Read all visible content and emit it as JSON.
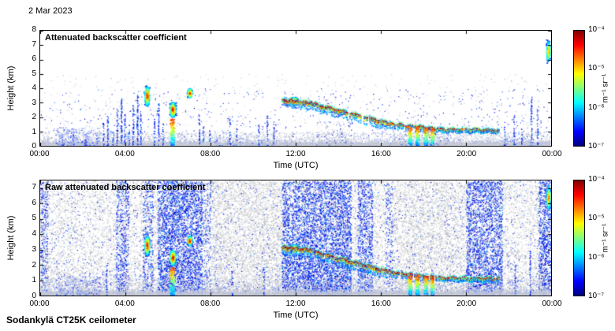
{
  "date_label": "2 Mar 2023",
  "footer_label": "Sodankylä CT25K ceilometer",
  "time_axis": {
    "label": "Time (UTC)",
    "tick_hours": [
      0,
      4,
      8,
      12,
      16,
      20,
      24
    ],
    "tick_labels": [
      "00:00",
      "04:00",
      "08:00",
      "12:00",
      "16:00",
      "20:00",
      "00:00"
    ]
  },
  "colorbar": {
    "unit": "m⁻¹ sr⁻¹",
    "tick_labels": [
      "10⁻⁴",
      "10⁻⁵",
      "10⁻⁶",
      "10⁻⁷"
    ],
    "min": "1e-7",
    "max": "1e-4",
    "colormap": "jet"
  },
  "chart_data": [
    {
      "type": "heatmap",
      "title": "Attenuated backscatter coefficient",
      "ylabel": "Height (km)",
      "xlabel": "Time (UTC)",
      "x_range_hours": [
        0,
        24
      ],
      "y_range_km": [
        0,
        8
      ],
      "y_ticks": [
        8,
        7,
        6,
        5,
        4,
        3,
        2,
        1,
        0
      ],
      "colorbar_range": [
        "1e-7",
        "1e-4"
      ],
      "seed": 11,
      "gray_bands": [
        {
          "t0": 0,
          "t1": 24,
          "d": 0.018,
          "hmax": 5
        }
      ],
      "blue_sparse": {
        "d": 0.02,
        "hmax": 4
      },
      "noise_bands": [],
      "surface": {
        "top_km": 0.28,
        "speckle_top_km": 0.85
      },
      "plumes": [
        {
          "t0": 0.7,
          "t1": 2.8,
          "hmax": 1.3,
          "d": 0.55
        },
        {
          "t0": 8.1,
          "t1": 9.3,
          "hmax": 0.7,
          "d": 0.35
        },
        {
          "t0": 9.3,
          "t1": 11.6,
          "hmax": 0.55,
          "d": 0.25
        },
        {
          "t0": 12.9,
          "t1": 14.7,
          "hmax": 1.7,
          "d": 0.25,
          "c": "gray"
        },
        {
          "t0": 16.4,
          "t1": 19.2,
          "hmax": 0.9,
          "d": 0.3,
          "c": "gray"
        },
        {
          "t0": 21.6,
          "t1": 23.4,
          "hmax": 0.6,
          "d": 0.2
        }
      ],
      "columns": [
        [
          1.0,
          0.9,
          0.3
        ],
        [
          1.55,
          1.0,
          0.3
        ],
        [
          2.1,
          0.85,
          0.3
        ],
        [
          2.95,
          1.6,
          0.5
        ],
        [
          3.15,
          2.1,
          0.6
        ],
        [
          3.4,
          1.2,
          0.4
        ],
        [
          3.6,
          2.6,
          0.5
        ],
        [
          3.8,
          3.3,
          0.7
        ],
        [
          3.95,
          2.2,
          0.5
        ],
        [
          4.15,
          1.5,
          0.4
        ],
        [
          4.35,
          2.9,
          0.6
        ],
        [
          4.55,
          3.6,
          0.7
        ],
        [
          4.7,
          2.4,
          0.5
        ],
        [
          5.35,
          2.0,
          0.5
        ],
        [
          5.55,
          3.0,
          0.6
        ],
        [
          5.75,
          1.6,
          0.4
        ],
        [
          7.45,
          2.3,
          0.5
        ],
        [
          7.65,
          1.4,
          0.4
        ],
        [
          7.95,
          1.1,
          0.35
        ],
        [
          8.9,
          1.9,
          0.4
        ],
        [
          9.2,
          1.3,
          0.35
        ],
        [
          10.25,
          1.6,
          0.4
        ],
        [
          10.65,
          2.1,
          0.45
        ],
        [
          10.95,
          1.8,
          0.4
        ],
        [
          21.8,
          1.5,
          0.4
        ],
        [
          22.25,
          2.2,
          0.5
        ],
        [
          22.6,
          1.3,
          0.4
        ],
        [
          23.05,
          3.3,
          0.55
        ],
        [
          23.35,
          2.6,
          0.5
        ]
      ],
      "clouds": [
        {
          "kind": "blob",
          "t": 5.0,
          "h": 3.5,
          "rt": 0.13,
          "rh": 0.8,
          "n": 600
        },
        {
          "kind": "blob",
          "t": 6.2,
          "h": 2.55,
          "rt": 0.17,
          "rh": 0.62,
          "n": 650
        },
        {
          "kind": "blob",
          "t": 7.0,
          "h": 3.7,
          "rt": 0.13,
          "rh": 0.38,
          "n": 380
        },
        {
          "kind": "blob",
          "t": 11.9,
          "h": 3.15,
          "rt": 0.25,
          "rh": 0.3,
          "n": 420
        },
        {
          "kind": "line",
          "t0": 11.35,
          "t1": 12.75,
          "h0": 3.2,
          "h1": 3.0,
          "fuzz": 0.5,
          "gaps": 0.05
        },
        {
          "kind": "line",
          "t0": 12.75,
          "t1": 16.3,
          "h0": 2.95,
          "h1": 1.6,
          "fuzz": 0.5,
          "gaps": 0.12
        },
        {
          "kind": "line",
          "t0": 16.3,
          "t1": 18.6,
          "h0": 1.55,
          "h1": 1.2,
          "fuzz": 0.35,
          "gaps": 0.25
        },
        {
          "kind": "line",
          "t0": 18.6,
          "t1": 21.55,
          "h0": 1.15,
          "h1": 1.1,
          "fuzz": 0.22,
          "gaps": 0.1
        },
        {
          "kind": "blob",
          "t": 23.85,
          "h": 6.6,
          "rt": 0.11,
          "rh": 0.85,
          "n": 450,
          "vmax": 0.8
        }
      ],
      "virga": [
        {
          "t": 6.18,
          "htop": 1.9,
          "w": 0.1
        },
        {
          "t": 17.35,
          "htop": 1.3,
          "w": 0.08
        },
        {
          "t": 17.7,
          "htop": 1.35,
          "w": 0.08
        },
        {
          "t": 18.1,
          "htop": 1.3,
          "w": 0.09
        },
        {
          "t": 18.4,
          "htop": 1.2,
          "w": 0.07
        }
      ]
    },
    {
      "type": "heatmap",
      "title": "Raw attenuated backscatter coefficient",
      "ylabel": "Height (km)",
      "xlabel": "Time (UTC)",
      "x_range_hours": [
        0,
        24
      ],
      "y_range_km": [
        0,
        7.5
      ],
      "y_ticks": [
        7,
        6,
        5,
        4,
        3,
        2,
        1,
        0
      ],
      "colorbar_range": [
        "1e-7",
        "1e-4"
      ],
      "seed": 23,
      "gray_bands": [
        {
          "t0": 0,
          "t1": 24,
          "d": 0.5,
          "hmax": 7.5,
          "pow": 1.15
        },
        {
          "t0": 8.0,
          "t1": 11.5,
          "d": 0.3,
          "hmax": 7.5
        },
        {
          "t0": 16.5,
          "t1": 20.2,
          "d": 0.25,
          "hmax": 7.5
        }
      ],
      "blue_sparse": {
        "d": 0.06,
        "hmax": 7.5
      },
      "noise_bands": [
        {
          "t0": 0.0,
          "t1": 0.35,
          "d": 0.5
        },
        {
          "t0": 3.55,
          "t1": 4.15,
          "d": 0.55
        },
        {
          "t0": 4.8,
          "t1": 5.3,
          "d": 0.5
        },
        {
          "t0": 5.5,
          "t1": 7.6,
          "d": 0.95
        },
        {
          "t0": 7.6,
          "t1": 8.0,
          "d": 0.3
        },
        {
          "t0": 11.35,
          "t1": 12.4,
          "d": 0.85
        },
        {
          "t0": 12.4,
          "t1": 14.6,
          "d": 1.0,
          "pow": 1.3
        },
        {
          "t0": 14.9,
          "t1": 15.6,
          "d": 0.75
        },
        {
          "t0": 16.2,
          "t1": 16.55,
          "d": 0.3
        },
        {
          "t0": 20.0,
          "t1": 21.7,
          "d": 0.8
        },
        {
          "t0": 23.4,
          "t1": 24.0,
          "d": 0.85
        }
      ],
      "surface": {
        "top_km": 0.3,
        "speckle_top_km": 1.0
      },
      "plumes": [
        {
          "t0": 0.7,
          "t1": 2.8,
          "hmax": 1.3,
          "d": 0.5
        }
      ],
      "columns": [
        [
          3.1,
          2.0,
          0.5
        ],
        [
          9.0,
          1.6,
          0.4
        ],
        [
          10.5,
          1.9,
          0.4
        ],
        [
          22.3,
          2.0,
          0.5
        ],
        [
          23.0,
          3.0,
          0.5
        ]
      ],
      "clouds": [
        {
          "kind": "blob",
          "t": 5.0,
          "h": 3.3,
          "rt": 0.13,
          "rh": 0.75,
          "n": 650
        },
        {
          "kind": "blob",
          "t": 6.2,
          "h": 2.5,
          "rt": 0.17,
          "rh": 0.6,
          "n": 650
        },
        {
          "kind": "blob",
          "t": 7.0,
          "h": 3.6,
          "rt": 0.13,
          "rh": 0.38,
          "n": 380
        },
        {
          "kind": "blob",
          "t": 11.9,
          "h": 3.1,
          "rt": 0.25,
          "rh": 0.3,
          "n": 420
        },
        {
          "kind": "line",
          "t0": 11.35,
          "t1": 12.75,
          "h0": 3.15,
          "h1": 3.0,
          "fuzz": 0.5,
          "gaps": 0.05
        },
        {
          "kind": "line",
          "t0": 12.75,
          "t1": 16.3,
          "h0": 2.9,
          "h1": 1.6,
          "fuzz": 0.5,
          "gaps": 0.12
        },
        {
          "kind": "line",
          "t0": 16.3,
          "t1": 18.6,
          "h0": 1.55,
          "h1": 1.2,
          "fuzz": 0.35,
          "gaps": 0.25
        },
        {
          "kind": "line",
          "t0": 18.6,
          "t1": 21.55,
          "h0": 1.15,
          "h1": 1.1,
          "fuzz": 0.22,
          "gaps": 0.1
        },
        {
          "kind": "blob",
          "t": 23.85,
          "h": 6.4,
          "rt": 0.11,
          "rh": 0.9,
          "n": 450,
          "vmax": 0.8
        }
      ],
      "virga": [
        {
          "t": 6.18,
          "htop": 1.9,
          "w": 0.1
        },
        {
          "t": 17.35,
          "htop": 1.3,
          "w": 0.08
        },
        {
          "t": 17.7,
          "htop": 1.35,
          "w": 0.08
        },
        {
          "t": 18.1,
          "htop": 1.3,
          "w": 0.09
        },
        {
          "t": 18.4,
          "htop": 1.2,
          "w": 0.07
        }
      ]
    }
  ]
}
